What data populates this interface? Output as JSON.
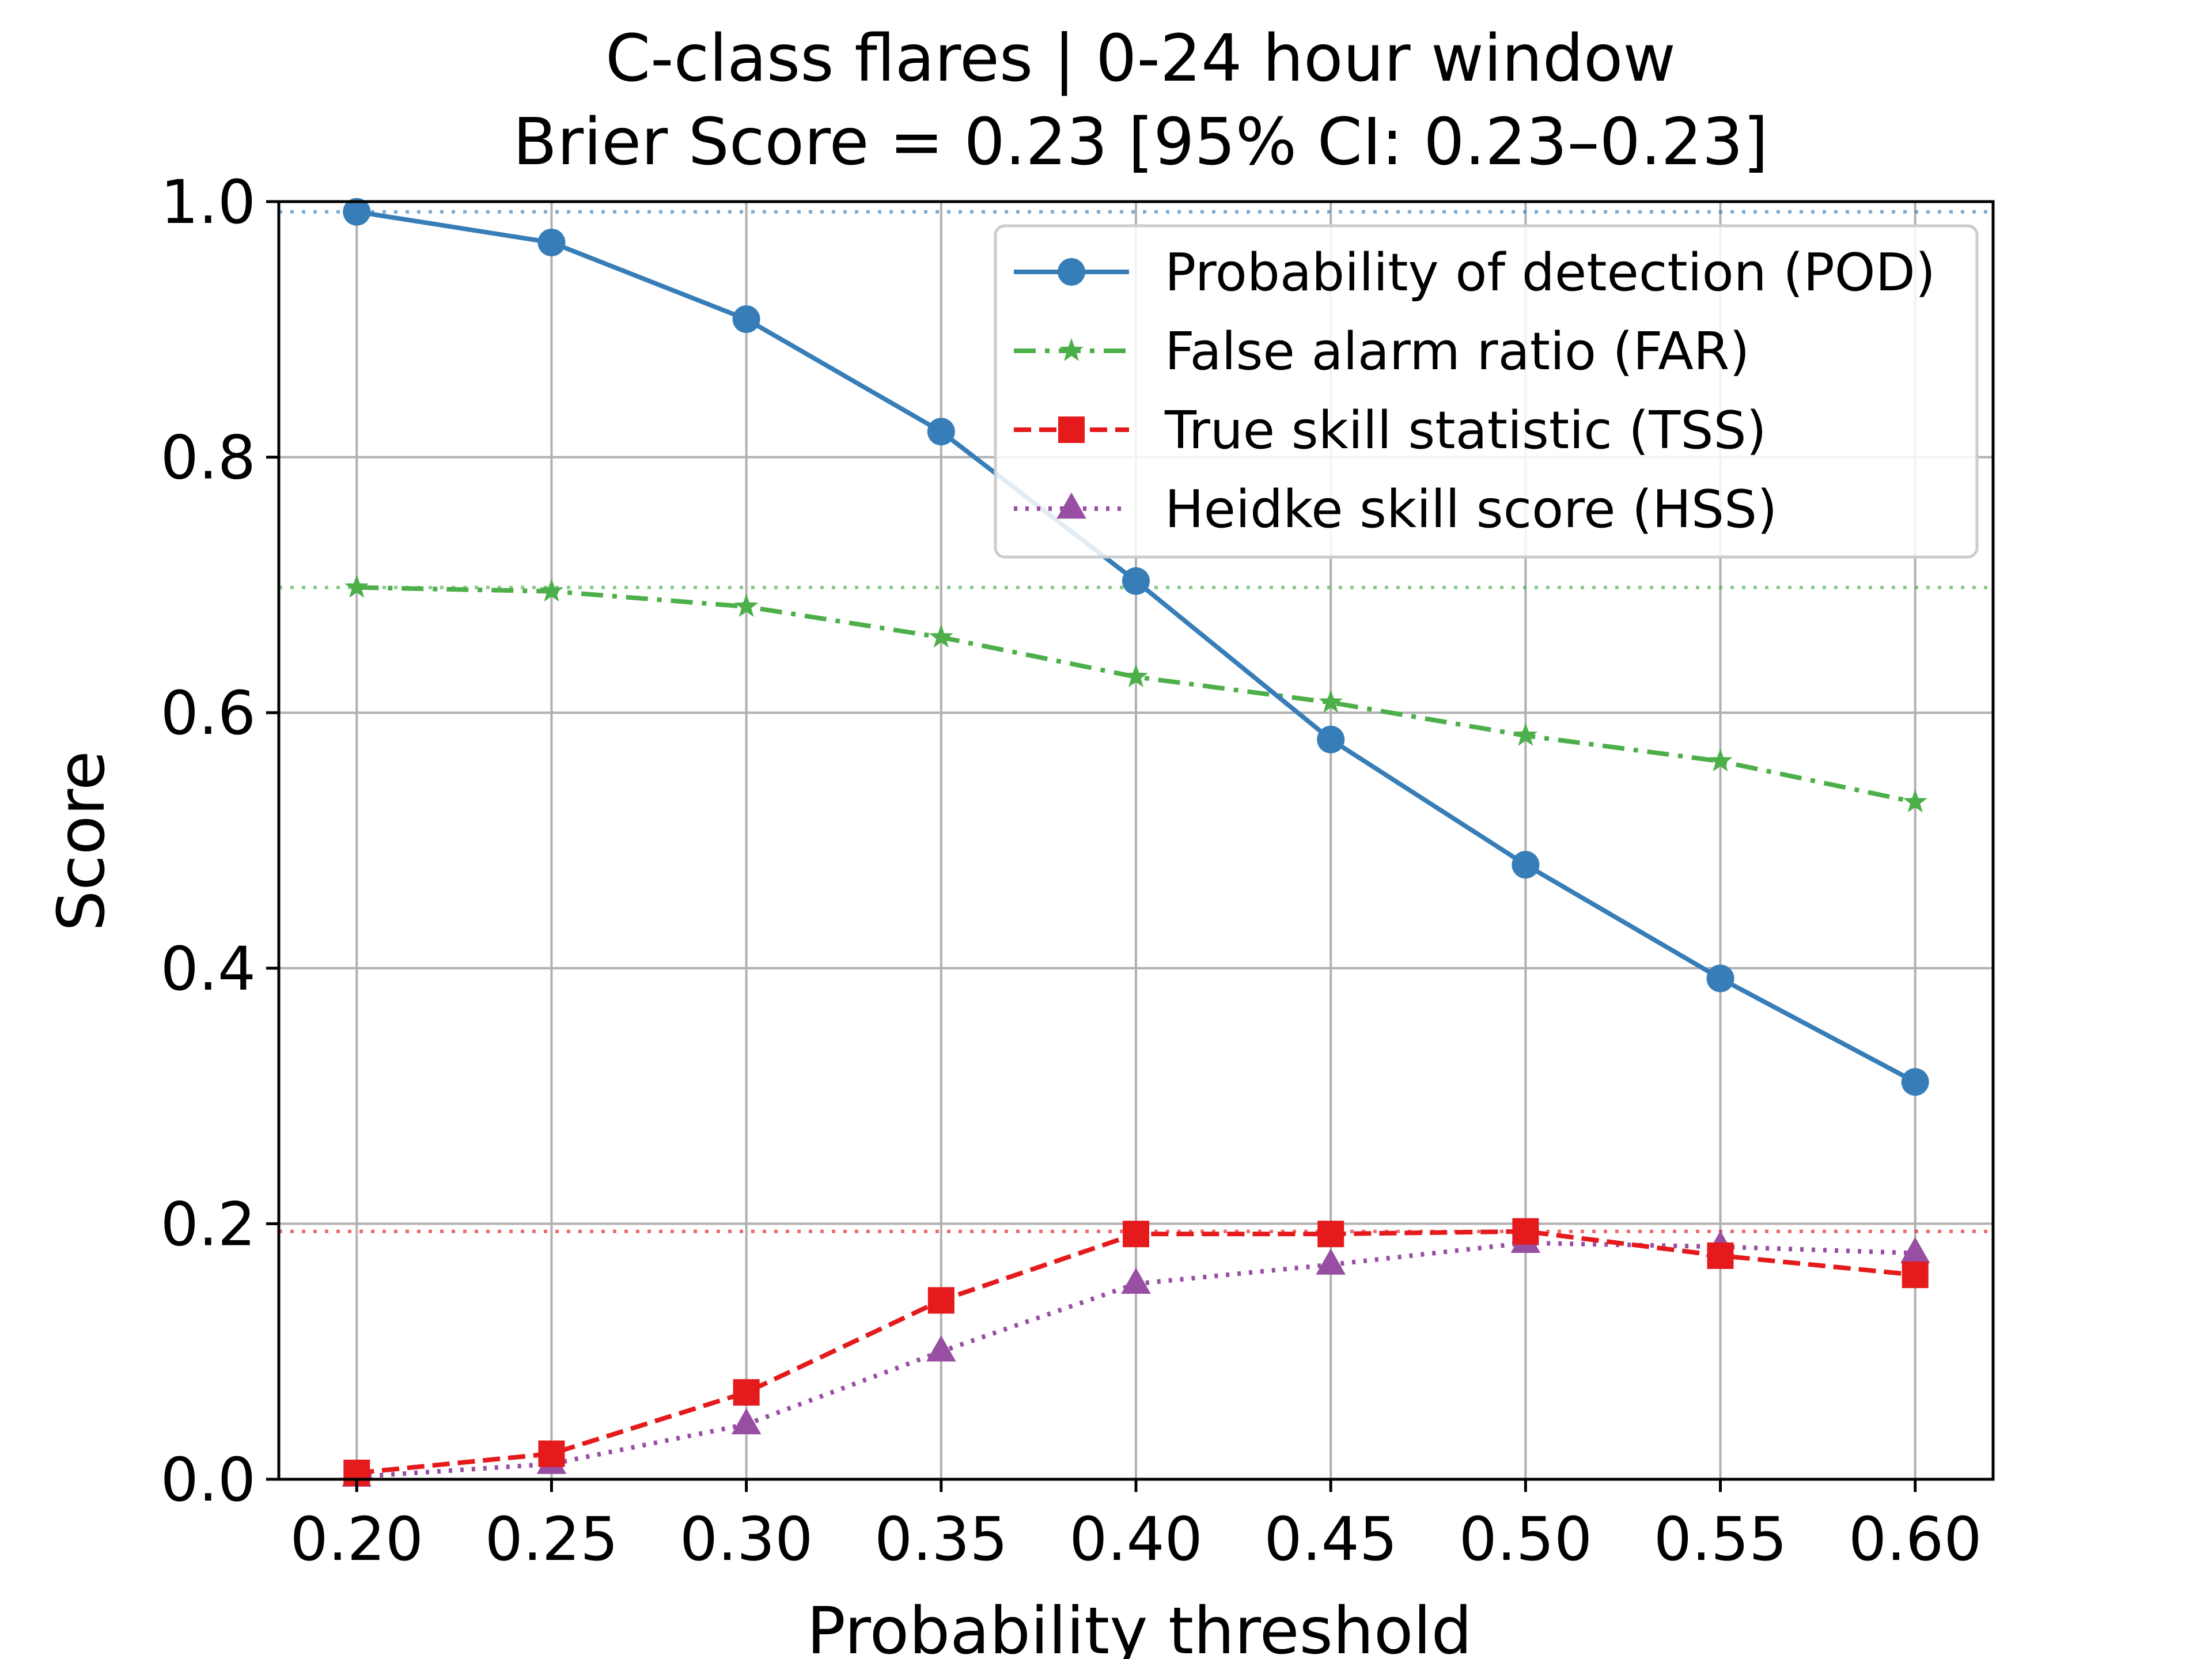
{
  "chart_data": {
    "type": "line",
    "title": "C-class flares | 0-24 hour window",
    "subtitle": "Brier Score = 0.23 [95% CI: 0.23–0.23]",
    "xlabel": "Probability threshold",
    "ylabel": "Score",
    "xlim": [
      0.18,
      0.62
    ],
    "ylim": [
      0.0,
      1.0
    ],
    "x": [
      0.2,
      0.25,
      0.3,
      0.35,
      0.4,
      0.45,
      0.5,
      0.55,
      0.6
    ],
    "x_tick_labels": [
      "0.20",
      "0.25",
      "0.30",
      "0.35",
      "0.40",
      "0.45",
      "0.50",
      "0.55",
      "0.60"
    ],
    "y_ticks": [
      0.0,
      0.2,
      0.4,
      0.6,
      0.8,
      1.0
    ],
    "y_tick_labels": [
      "0.0",
      "0.2",
      "0.4",
      "0.6",
      "0.8",
      "1.0"
    ],
    "grid": true,
    "legend_position": "top-right",
    "series": [
      {
        "name": "Probability of detection (POD)",
        "values": [
          0.992,
          0.968,
          0.908,
          0.82,
          0.703,
          0.579,
          0.481,
          0.392,
          0.311
        ],
        "color": "#377eb8",
        "marker": "circle",
        "line_style": "solid",
        "reference_line": 0.992
      },
      {
        "name": "False alarm ratio (FAR)",
        "values": [
          0.698,
          0.695,
          0.683,
          0.659,
          0.628,
          0.608,
          0.582,
          0.562,
          0.53
        ],
        "color": "#4daf4a",
        "marker": "star",
        "line_style": "dash-dot",
        "reference_line": 0.698
      },
      {
        "name": "True skill statistic (TSS)",
        "values": [
          0.005,
          0.02,
          0.068,
          0.14,
          0.192,
          0.192,
          0.194,
          0.175,
          0.16
        ],
        "color": "#e41a1c",
        "marker": "square",
        "line_style": "dashed",
        "reference_line": 0.194
      },
      {
        "name": "Heidke skill score (HSS)",
        "values": [
          0.002,
          0.012,
          0.043,
          0.1,
          0.153,
          0.168,
          0.185,
          0.182,
          0.177
        ],
        "color": "#984ea3",
        "marker": "triangle",
        "line_style": "dotted",
        "reference_line": null
      }
    ]
  }
}
